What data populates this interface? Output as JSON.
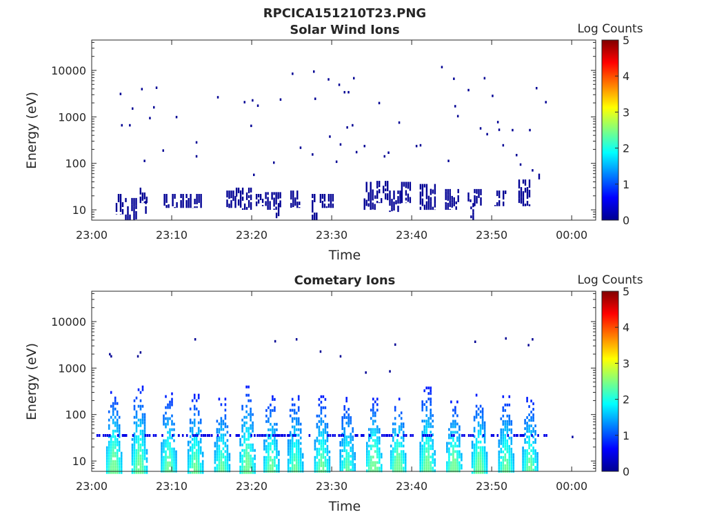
{
  "figure": {
    "title": "RPCICA151210T23.PNG"
  },
  "chart_data": [
    {
      "type": "heatmap",
      "title": "Solar Wind Ions",
      "xlabel": "Time",
      "ylabel": "Energy (eV)",
      "x_ticks": [
        "23:00",
        "23:10",
        "23:20",
        "23:30",
        "23:40",
        "23:50",
        "00:00"
      ],
      "xlim": [
        "23:00",
        "00:03"
      ],
      "y_ticks": [
        "10",
        "100",
        "1000",
        "10000"
      ],
      "ylim": [
        6,
        45000
      ],
      "y_scale": "log",
      "grid": false,
      "colorbar": {
        "label": "Log Counts",
        "ticks": [
          "0",
          "1",
          "2",
          "3",
          "4",
          "5"
        ],
        "range": [
          0,
          5
        ],
        "colormap": "jet"
      },
      "scatter_points": [
        [
          "23:03:30",
          3300,
          0.2
        ],
        [
          "23:03:40",
          700,
          0.2
        ],
        [
          "23:04:40",
          700,
          0.2
        ],
        [
          "23:05:00",
          1600,
          0.2
        ],
        [
          "23:06:10",
          4200,
          0.2
        ],
        [
          "23:06:30",
          120,
          0.2
        ],
        [
          "23:07:10",
          1000,
          0.2
        ],
        [
          "23:07:40",
          1700,
          0.2
        ],
        [
          "23:08:00",
          4500,
          0.2
        ],
        [
          "23:08:50",
          200,
          0.2
        ],
        [
          "23:10:30",
          1050,
          0.2
        ],
        [
          "23:13:00",
          300,
          0.2
        ],
        [
          "23:13:00",
          150,
          0.2
        ],
        [
          "23:15:40",
          2800,
          0.2
        ],
        [
          "23:19:00",
          2200,
          0.2
        ],
        [
          "23:19:50",
          680,
          0.2
        ],
        [
          "23:20:00",
          2400,
          0.2
        ],
        [
          "23:20:10",
          60,
          0.2
        ],
        [
          "23:20:40",
          1850,
          0.2
        ],
        [
          "23:22:40",
          110,
          0.2
        ],
        [
          "23:23:30",
          2500,
          0.2
        ],
        [
          "23:25:00",
          9000,
          0.2
        ],
        [
          "23:26:00",
          230,
          0.2
        ],
        [
          "23:27:30",
          165,
          0.2
        ],
        [
          "23:27:40",
          10000,
          0.2
        ],
        [
          "23:27:50",
          2600,
          0.2
        ],
        [
          "23:29:30",
          6800,
          0.2
        ],
        [
          "23:29:40",
          400,
          0.2
        ],
        [
          "23:30:30",
          115,
          0.2
        ],
        [
          "23:30:50",
          5200,
          0.2
        ],
        [
          "23:31:00",
          270,
          0.2
        ],
        [
          "23:31:30",
          3600,
          0.2
        ],
        [
          "23:31:50",
          630,
          0.2
        ],
        [
          "23:32:00",
          3600,
          0.2
        ],
        [
          "23:32:30",
          700,
          0.2
        ],
        [
          "23:32:40",
          7200,
          0.2
        ],
        [
          "23:33:00",
          185,
          0.2
        ],
        [
          "23:34:00",
          250,
          0.2
        ],
        [
          "23:35:50",
          2100,
          0.2
        ],
        [
          "23:36:30",
          150,
          0.2
        ],
        [
          "23:37:00",
          180,
          0.2
        ],
        [
          "23:38:20",
          800,
          0.2
        ],
        [
          "23:40:30",
          250,
          0.2
        ],
        [
          "23:41:00",
          260,
          0.2
        ],
        [
          "23:43:40",
          12500,
          0.2
        ],
        [
          "23:44:30",
          120,
          0.2
        ],
        [
          "23:45:10",
          7000,
          0.2
        ],
        [
          "23:45:20",
          1800,
          0.2
        ],
        [
          "23:45:40",
          1100,
          0.2
        ],
        [
          "23:47:00",
          4000,
          0.2
        ],
        [
          "23:48:30",
          600,
          0.2
        ],
        [
          "23:49:00",
          7200,
          0.2
        ],
        [
          "23:49:20",
          450,
          0.2
        ],
        [
          "23:50:00",
          3000,
          0.2
        ],
        [
          "23:50:40",
          820,
          0.2
        ],
        [
          "23:50:50",
          560,
          0.2
        ],
        [
          "23:51:20",
          260,
          0.2
        ],
        [
          "23:52:30",
          550,
          0.2
        ],
        [
          "23:53:00",
          160,
          0.2
        ],
        [
          "23:53:30",
          100,
          0.2
        ],
        [
          "23:54:40",
          550,
          0.2
        ],
        [
          "23:55:00",
          75,
          0.2
        ],
        [
          "23:56:40",
          2200,
          0.2
        ],
        [
          "23:55:30",
          4400,
          0.2
        ]
      ],
      "energy_bands": [
        [
          "23:03:00",
          "23:04:00",
          8,
          22,
          0.1
        ],
        [
          "23:04:10",
          "23:05:30",
          6,
          18,
          0.1
        ],
        [
          "23:06:00",
          "23:07:00",
          14,
          30,
          0.1
        ],
        [
          "23:06:40",
          "23:07:10",
          6,
          20,
          0.1
        ],
        [
          "23:09:00",
          "23:11:20",
          11,
          22,
          0.1
        ],
        [
          "23:11:30",
          "23:13:40",
          11,
          22,
          0.1
        ],
        [
          "23:16:50",
          "23:18:00",
          11,
          26,
          0.1
        ],
        [
          "23:18:00",
          "23:20:00",
          10,
          30,
          0.1
        ],
        [
          "23:20:30",
          "23:21:20",
          12,
          22,
          0.1
        ],
        [
          "23:21:40",
          "23:23:30",
          10,
          24,
          0.1
        ],
        [
          "23:23:00",
          "23:23:20",
          6,
          14,
          0.1
        ],
        [
          "23:24:50",
          "23:26:00",
          11,
          26,
          0.1
        ],
        [
          "23:27:30",
          "23:28:20",
          6,
          22,
          0.1
        ],
        [
          "23:28:30",
          "23:30:10",
          11,
          22,
          0.1
        ],
        [
          "23:34:00",
          "23:35:20",
          10,
          40,
          0.1
        ],
        [
          "23:35:20",
          "23:37:00",
          14,
          42,
          0.1
        ],
        [
          "23:37:10",
          "23:38:30",
          9,
          26,
          0.1
        ],
        [
          "23:38:40",
          "23:39:50",
          14,
          40,
          0.1
        ],
        [
          "23:41:00",
          "23:42:50",
          10,
          36,
          0.1
        ],
        [
          "23:44:10",
          "23:45:50",
          10,
          28,
          0.1
        ],
        [
          "23:47:00",
          "23:48:40",
          12,
          28,
          0.1
        ],
        [
          "23:47:20",
          "23:47:40",
          6,
          14,
          0.1
        ],
        [
          "23:50:20",
          "23:51:50",
          12,
          26,
          0.1
        ],
        [
          "23:53:20",
          "23:54:40",
          12,
          45,
          0.1
        ],
        [
          "23:55:50",
          "23:56:20",
          45,
          60,
          0.1
        ]
      ]
    },
    {
      "type": "heatmap",
      "title": "Cometary Ions",
      "xlabel": "Time",
      "ylabel": "Energy (eV)",
      "x_ticks": [
        "23:00",
        "23:10",
        "23:20",
        "23:30",
        "23:40",
        "23:50",
        "00:00"
      ],
      "xlim": [
        "23:00",
        "00:03"
      ],
      "y_ticks": [
        "10",
        "100",
        "1000",
        "10000"
      ],
      "ylim": [
        6,
        45000
      ],
      "y_scale": "log",
      "grid": false,
      "colorbar": {
        "label": "Log Counts",
        "ticks": [
          "0",
          "1",
          "2",
          "3",
          "4",
          "5"
        ],
        "range": [
          0,
          5
        ],
        "colormap": "jet"
      },
      "scatter_points": [
        [
          "23:02:10",
          2100,
          0.2
        ],
        [
          "23:02:20",
          1900,
          0.2
        ],
        [
          "23:05:40",
          1900,
          0.2
        ],
        [
          "23:06:00",
          2300,
          0.2
        ],
        [
          "23:12:50",
          4400,
          0.2
        ],
        [
          "23:22:50",
          4000,
          0.2
        ],
        [
          "23:25:30",
          4400,
          0.2
        ],
        [
          "23:28:30",
          2400,
          0.2
        ],
        [
          "23:31:00",
          1900,
          0.2
        ],
        [
          "23:34:10",
          850,
          0.2
        ],
        [
          "23:37:50",
          3400,
          0.2
        ],
        [
          "23:37:10",
          900,
          0.2
        ],
        [
          "23:47:50",
          3900,
          0.2
        ],
        [
          "23:51:40",
          4600,
          0.2
        ],
        [
          "23:54:30",
          3300,
          0.2
        ],
        [
          "23:55:00",
          4400,
          0.2
        ],
        [
          "00:00:00",
          35,
          0.3
        ]
      ],
      "bursts": [
        {
          "center": "23:02:40",
          "upper_eV": 320,
          "peak_log": 2.2
        },
        {
          "center": "23:05:50",
          "upper_eV": 420,
          "peak_log": 2.1
        },
        {
          "center": "23:09:30",
          "upper_eV": 300,
          "peak_log": 2.0
        },
        {
          "center": "23:12:50",
          "upper_eV": 280,
          "peak_log": 2.0
        },
        {
          "center": "23:16:10",
          "upper_eV": 230,
          "peak_log": 1.9
        },
        {
          "center": "23:19:20",
          "upper_eV": 420,
          "peak_log": 2.1
        },
        {
          "center": "23:22:20",
          "upper_eV": 260,
          "peak_log": 2.0
        },
        {
          "center": "23:25:20",
          "upper_eV": 300,
          "peak_log": 1.9
        },
        {
          "center": "23:28:40",
          "upper_eV": 260,
          "peak_log": 2.0
        },
        {
          "center": "23:31:50",
          "upper_eV": 240,
          "peak_log": 1.8
        },
        {
          "center": "23:35:10",
          "upper_eV": 230,
          "peak_log": 2.3
        },
        {
          "center": "23:38:10",
          "upper_eV": 230,
          "peak_log": 2.2
        },
        {
          "center": "23:41:50",
          "upper_eV": 400,
          "peak_log": 2.1
        },
        {
          "center": "23:45:10",
          "upper_eV": 200,
          "peak_log": 2.2
        },
        {
          "center": "23:48:20",
          "upper_eV": 280,
          "peak_log": 2.1
        },
        {
          "center": "23:51:40",
          "upper_eV": 260,
          "peak_log": 2.0
        },
        {
          "center": "23:54:40",
          "upper_eV": 240,
          "peak_log": 2.0
        }
      ]
    }
  ]
}
